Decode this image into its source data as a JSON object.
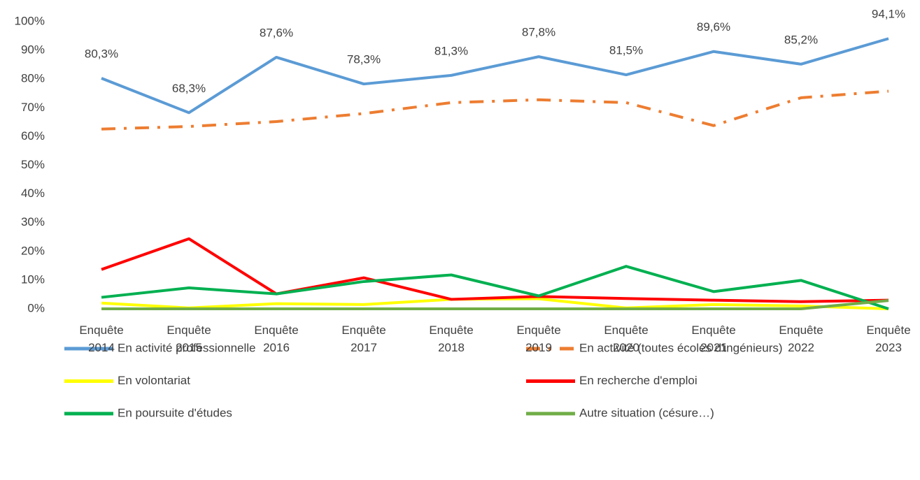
{
  "chart_data": {
    "type": "line",
    "categories": [
      "Enquête 2014",
      "Enquête 2015",
      "Enquête 2016",
      "Enquête 2017",
      "Enquête 2018",
      "Enquête 2019",
      "Enquête 2020",
      "Enquête 2021",
      "Enquête 2022",
      "Enquête 2023"
    ],
    "series": [
      {
        "name": "En activité professionnelle",
        "color": "#5b9bd5",
        "dash": "solid",
        "values": [
          80.3,
          68.3,
          87.6,
          78.3,
          81.3,
          87.8,
          81.5,
          89.6,
          85.2,
          94.1
        ],
        "value_labels": [
          "80,3%",
          "68,3%",
          "87,6%",
          "78,3%",
          "81,3%",
          "87,8%",
          "81,5%",
          "89,6%",
          "85,2%",
          "94,1%"
        ]
      },
      {
        "name": "En activité (toutes écoles d'ingénieurs)",
        "color": "#ed7d31",
        "dash": "dashdot",
        "values": [
          62.6,
          63.5,
          65.2,
          68.0,
          71.8,
          72.8,
          71.8,
          63.8,
          73.5,
          75.8
        ]
      },
      {
        "name": "En volontariat",
        "color": "#ffff00",
        "dash": "solid",
        "values": [
          2.0,
          0.3,
          1.8,
          1.5,
          3.3,
          3.5,
          0.3,
          1.5,
          1.0,
          0
        ]
      },
      {
        "name": "En recherche d'emploi",
        "color": "#ff0000",
        "dash": "solid",
        "values": [
          13.7,
          24.4,
          5.2,
          10.8,
          3.3,
          4.3,
          3.6,
          3.0,
          2.5,
          3.0
        ]
      },
      {
        "name": "En poursuite d'études",
        "color": "#00b050",
        "dash": "solid",
        "values": [
          4.0,
          7.3,
          5.2,
          9.5,
          11.8,
          4.5,
          14.8,
          6.0,
          9.9,
          0
        ]
      },
      {
        "name": "Autre situation (césure…)",
        "color": "#70ad47",
        "dash": "solid",
        "values": [
          0,
          0,
          0,
          0,
          0,
          0,
          0,
          0,
          0,
          2.9
        ]
      }
    ],
    "ylim": [
      0,
      100
    ],
    "yticks": [
      {
        "value": 0,
        "label": "0%"
      },
      {
        "value": 10,
        "label": "10%"
      },
      {
        "value": 20,
        "label": "20%"
      },
      {
        "value": 30,
        "label": "30%"
      },
      {
        "value": 40,
        "label": "40%"
      },
      {
        "value": 50,
        "label": "50%"
      },
      {
        "value": 60,
        "label": "60%"
      },
      {
        "value": 70,
        "label": "70%"
      },
      {
        "value": 80,
        "label": "80%"
      },
      {
        "value": 90,
        "label": "90%"
      },
      {
        "value": 100,
        "label": "100%"
      }
    ],
    "grid": false,
    "legend": "bottom"
  }
}
